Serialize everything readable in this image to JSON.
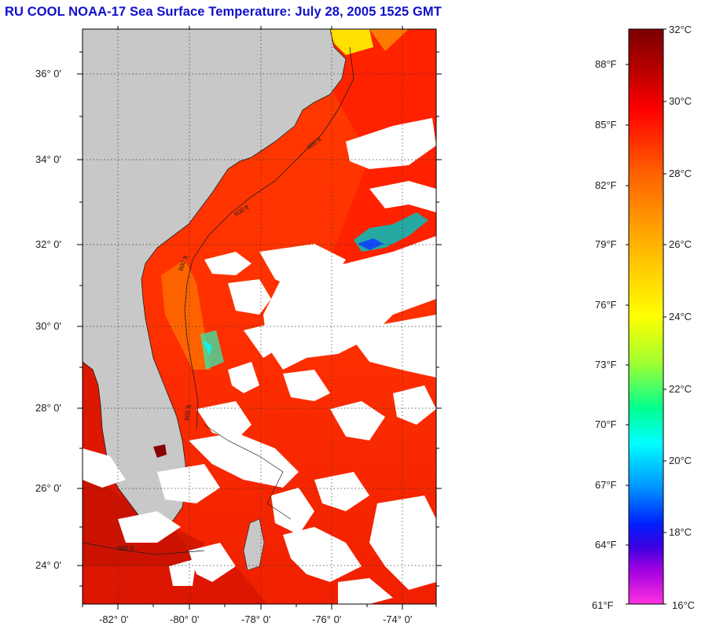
{
  "title": "RU COOL  NOAA-17  Sea Surface Temperature:  July 28, 2005 1525 GMT",
  "map": {
    "lat_labels": [
      "36° 0'",
      "34° 0'",
      "32° 0'",
      "30° 0'",
      "28° 0'",
      "26° 0'",
      "24° 0'"
    ],
    "lon_labels": [
      "-82° 0'",
      "-80° 0'",
      "-78° 0'",
      "-76° 0'",
      "-74° 0'"
    ],
    "isobath_labels": [
      "600 ft",
      "600 ft",
      "600 ft",
      "600 ft",
      "600 ft"
    ],
    "colors": {
      "land": "#c8c8c8",
      "cloud": "#ffffff",
      "frame": "#000000"
    }
  },
  "colorbar": {
    "celsius_labels": [
      "32°C",
      "30°C",
      "28°C",
      "26°C",
      "24°C",
      "22°C",
      "20°C",
      "18°C",
      "16°C"
    ],
    "fahrenheit_labels": [
      "88°F",
      "85°F",
      "82°F",
      "79°F",
      "76°F",
      "73°F",
      "70°F",
      "67°F",
      "64°F",
      "61°F"
    ],
    "gradient_colors": [
      "#8b0000",
      "#ff0000",
      "#ff8c00",
      "#ffff00",
      "#00ff7f",
      "#00ffff",
      "#0000ff",
      "#8000c8",
      "#ff00ff"
    ]
  }
}
